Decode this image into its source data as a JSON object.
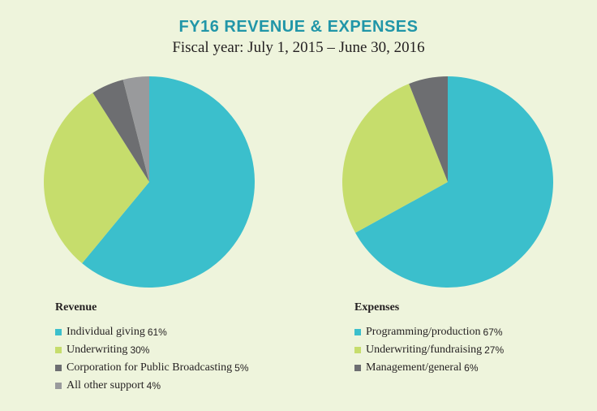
{
  "header": {
    "title": "FY16 REVENUE & EXPENSES",
    "subtitle": "Fiscal year: July 1, 2015 – June 30, 2016"
  },
  "colors": {
    "background": "#eef4dc",
    "title": "#2196a8",
    "teal": "#3bbfcc",
    "green": "#c6dd6c",
    "dark_gray": "#6d6e71",
    "light_gray": "#999a9c"
  },
  "chart_data": [
    {
      "type": "pie",
      "title": "Revenue",
      "slices": [
        {
          "label": "Individual giving",
          "value": 61,
          "value_label": "61%",
          "color": "#3bbfcc"
        },
        {
          "label": "Underwriting",
          "value": 30,
          "value_label": "30%",
          "color": "#c6dd6c"
        },
        {
          "label": "Corporation for Public Broadcasting",
          "value": 5,
          "value_label": "5%",
          "color": "#6d6e71"
        },
        {
          "label": "All other support",
          "value": 4,
          "value_label": "4%",
          "color": "#999a9c"
        }
      ],
      "legend_position": "bottom-left"
    },
    {
      "type": "pie",
      "title": "Expenses",
      "slices": [
        {
          "label": "Programming/production",
          "value": 67,
          "value_label": "67%",
          "color": "#3bbfcc"
        },
        {
          "label": "Underwriting/fundraising",
          "value": 27,
          "value_label": "27%",
          "color": "#c6dd6c"
        },
        {
          "label": "Management/general",
          "value": 6,
          "value_label": "6%",
          "color": "#6d6e71"
        }
      ],
      "legend_position": "bottom-right"
    }
  ]
}
